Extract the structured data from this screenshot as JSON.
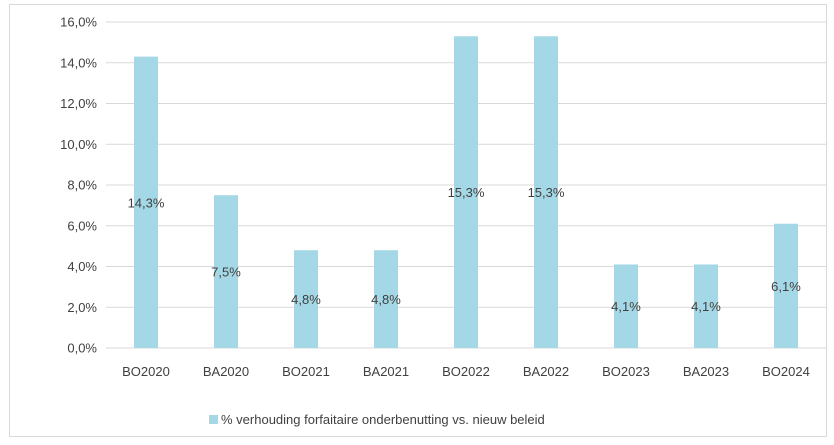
{
  "chart_data": {
    "type": "bar",
    "title": "",
    "xlabel": "",
    "ylabel": "",
    "categories": [
      "BO2020",
      "BA2020",
      "BO2021",
      "BA2021",
      "BO2022",
      "BA2022",
      "BO2023",
      "BA2023",
      "BO2024"
    ],
    "series": [
      {
        "name": "% verhouding forfaitaire onderbenutting vs. nieuw beleid",
        "values": [
          14.3,
          7.5,
          4.8,
          4.8,
          15.3,
          15.3,
          4.1,
          4.1,
          6.1
        ],
        "data_labels": [
          "14,3%",
          "7,5%",
          "4,8%",
          "4,8%",
          "15,3%",
          "15,3%",
          "4,1%",
          "4,1%",
          "6,1%"
        ],
        "color": "#a5d8e6"
      }
    ],
    "ylim": [
      0,
      16
    ],
    "y_ticks": [
      0,
      2,
      4,
      6,
      8,
      10,
      12,
      14,
      16
    ],
    "y_tick_labels": [
      "0,0%",
      "2,0%",
      "4,0%",
      "6,0%",
      "8,0%",
      "10,0%",
      "12,0%",
      "14,0%",
      "16,0%"
    ],
    "grid": true,
    "gridline_color": "#d9d9d9",
    "legend_position": "bottom"
  }
}
